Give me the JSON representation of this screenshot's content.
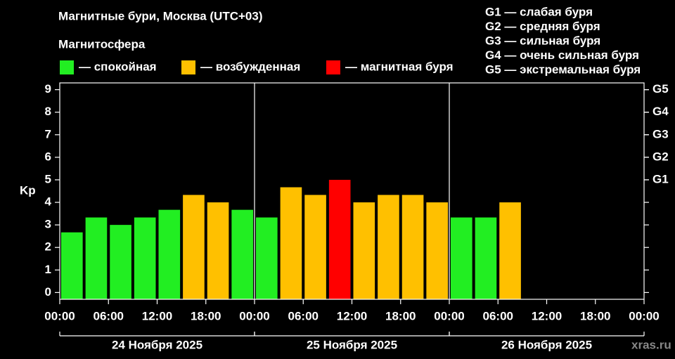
{
  "chart_data": {
    "type": "bar",
    "title": "Магнитные бури, Москва (UTC+03)",
    "legend_title": "Магнитосфера",
    "legend": [
      {
        "label": "— спокойная",
        "color": "#22ee22"
      },
      {
        "label": "— возбужденная",
        "color": "#ffc000"
      },
      {
        "label": "— магнитная буря",
        "color": "#ff0000"
      }
    ],
    "storm_levels": [
      "G1 — слабая буря",
      "G2 — средняя буря",
      "G3 — сильная буря",
      "G4 — очень сильная буря",
      "G5 — экстремальная буря"
    ],
    "ylabel": "Kp",
    "x": [
      0,
      3,
      6,
      9,
      12,
      15,
      18,
      21,
      24,
      27,
      30,
      33,
      36,
      39,
      42,
      45,
      48,
      51,
      54
    ],
    "bin_width": 3,
    "values": [
      2.67,
      3.33,
      3.0,
      3.33,
      3.67,
      4.33,
      4.0,
      3.67,
      3.33,
      4.67,
      4.33,
      5.0,
      4.0,
      4.33,
      4.33,
      4.0,
      3.33,
      3.33,
      4.0
    ],
    "colors": [
      "#22ee22",
      "#22ee22",
      "#22ee22",
      "#22ee22",
      "#22ee22",
      "#ffc000",
      "#ffc000",
      "#22ee22",
      "#22ee22",
      "#ffc000",
      "#ffc000",
      "#ff0000",
      "#ffc000",
      "#ffc000",
      "#ffc000",
      "#ffc000",
      "#22ee22",
      "#22ee22",
      "#ffc000"
    ],
    "xlim": [
      0,
      72
    ],
    "xticks": [
      {
        "value": 0,
        "label": "00:00"
      },
      {
        "value": 6,
        "label": "06:00"
      },
      {
        "value": 12,
        "label": "12:00"
      },
      {
        "value": 18,
        "label": "18:00"
      },
      {
        "value": 24,
        "label": "00:00"
      },
      {
        "value": 30,
        "label": "06:00"
      },
      {
        "value": 36,
        "label": "12:00"
      },
      {
        "value": 42,
        "label": "18:00"
      },
      {
        "value": 48,
        "label": "00:00"
      },
      {
        "value": 54,
        "label": "06:00"
      },
      {
        "value": 60,
        "label": "12:00"
      },
      {
        "value": 66,
        "label": "18:00"
      },
      {
        "value": 72,
        "label": "00:00"
      }
    ],
    "days": [
      "24 Ноября 2025",
      "25 Ноября 2025",
      "26 Ноября 2025"
    ],
    "ylim": [
      -0.3,
      9.3
    ],
    "yticks": [
      0,
      1,
      2,
      3,
      4,
      5,
      6,
      7,
      8,
      9
    ],
    "y2lim": [
      -0.3,
      9.3
    ],
    "y2ticks": [
      {
        "value": 5,
        "label": "G1"
      },
      {
        "value": 6,
        "label": "G2"
      },
      {
        "value": 7,
        "label": "G3"
      },
      {
        "value": 8,
        "label": "G4"
      },
      {
        "value": 9,
        "label": "G5"
      }
    ],
    "watermark": "xras.ru"
  }
}
